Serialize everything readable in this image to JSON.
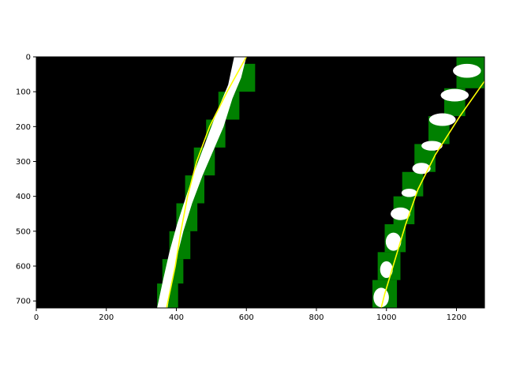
{
  "chart_data": {
    "type": "image",
    "title": "",
    "xlabel": "",
    "ylabel": "",
    "xlim": [
      0,
      1280
    ],
    "ylim": [
      720,
      0
    ],
    "y_inverted": true,
    "grid": false,
    "x_ticks": [
      0,
      200,
      400,
      600,
      800,
      1000,
      1200
    ],
    "y_ticks": [
      0,
      100,
      200,
      300,
      400,
      500,
      600,
      700
    ],
    "background_color": "#000000",
    "colors": {
      "lane_pixels": "#ffffff",
      "search_windows": "#008000",
      "fit_line": "#ffff00"
    },
    "series": [
      {
        "kind": "fit_curve",
        "points": [
          [
            600,
            0
          ],
          [
            545,
            100
          ],
          [
            495,
            200
          ],
          [
            458,
            300
          ],
          [
            432,
            400
          ],
          [
            413,
            500
          ],
          [
            397,
            600
          ],
          [
            372,
            720
          ]
        ]
      },
      {
        "kind": "fit_curve",
        "points": [
          [
            1280,
            70
          ],
          [
            1210,
            170
          ],
          [
            1140,
            280
          ],
          [
            1090,
            380
          ],
          [
            1055,
            480
          ],
          [
            1025,
            580
          ],
          [
            995,
            680
          ],
          [
            985,
            720
          ]
        ]
      }
    ]
  }
}
